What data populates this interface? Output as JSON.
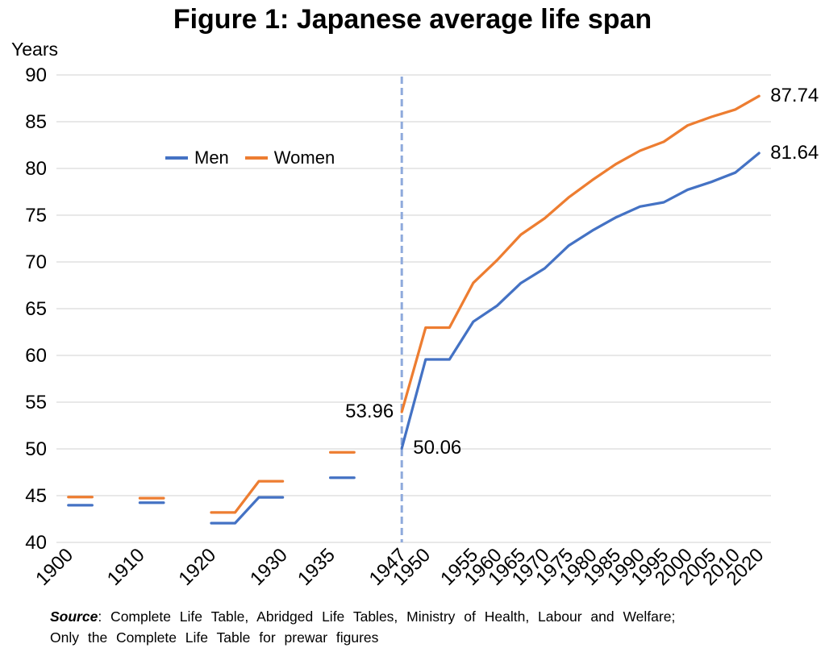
{
  "chart_data": {
    "type": "line",
    "title": "Figure 1: Japanese average life span",
    "ylabel": "Years",
    "xlabel": "",
    "ylim": [
      40,
      90
    ],
    "y_ticks": [
      40,
      45,
      50,
      55,
      60,
      65,
      70,
      75,
      80,
      85,
      90
    ],
    "grid": true,
    "grid_color": "#d9d9d9",
    "x_axis_note": "categorical axis; 30 uniform slots, life-table periods drawn as segments with gaps",
    "slot_count": 30,
    "x_ticks": [
      {
        "slot": 0,
        "label": "1900"
      },
      {
        "slot": 3,
        "label": "1910"
      },
      {
        "slot": 6,
        "label": "1920"
      },
      {
        "slot": 9,
        "label": "1930"
      },
      {
        "slot": 11,
        "label": "1935"
      },
      {
        "slot": 14,
        "label": "1947"
      },
      {
        "slot": 15,
        "label": "1950"
      },
      {
        "slot": 17,
        "label": "1955"
      },
      {
        "slot": 18,
        "label": "1960"
      },
      {
        "slot": 19,
        "label": "1965"
      },
      {
        "slot": 20,
        "label": "1970"
      },
      {
        "slot": 21,
        "label": "1975"
      },
      {
        "slot": 22,
        "label": "1980"
      },
      {
        "slot": 23,
        "label": "1985"
      },
      {
        "slot": 24,
        "label": "1990"
      },
      {
        "slot": 25,
        "label": "1995"
      },
      {
        "slot": 26,
        "label": "2000"
      },
      {
        "slot": 27,
        "label": "2005"
      },
      {
        "slot": 28,
        "label": "2010"
      },
      {
        "slot": 29,
        "label": "2020"
      }
    ],
    "divider": {
      "slot": 14,
      "label": "1947",
      "color": "#8faadc",
      "style": "dashed"
    },
    "series": [
      {
        "name": "Men",
        "color": "#4472C4",
        "points": [
          [
            0,
            43.97
          ],
          [
            1,
            43.97
          ],
          null,
          [
            3,
            44.25
          ],
          [
            4,
            44.25
          ],
          null,
          [
            6,
            42.06
          ],
          [
            7,
            42.06
          ],
          [
            8,
            44.82
          ],
          [
            9,
            44.82
          ],
          null,
          [
            11,
            46.92
          ],
          [
            12,
            46.92
          ],
          null,
          [
            14,
            50.06
          ],
          [
            15,
            59.57
          ],
          [
            16,
            59.57
          ],
          [
            17,
            63.6
          ],
          [
            18,
            65.32
          ],
          [
            19,
            67.74
          ],
          [
            20,
            69.31
          ],
          [
            21,
            71.73
          ],
          [
            22,
            73.35
          ],
          [
            23,
            74.78
          ],
          [
            24,
            75.92
          ],
          [
            25,
            76.38
          ],
          [
            26,
            77.72
          ],
          [
            27,
            78.56
          ],
          [
            28,
            79.55
          ],
          [
            29,
            81.64
          ]
        ]
      },
      {
        "name": "Women",
        "color": "#ED7D31",
        "points": [
          [
            0,
            44.85
          ],
          [
            1,
            44.85
          ],
          null,
          [
            3,
            44.73
          ],
          [
            4,
            44.73
          ],
          null,
          [
            6,
            43.2
          ],
          [
            7,
            43.2
          ],
          [
            8,
            46.54
          ],
          [
            9,
            46.54
          ],
          null,
          [
            11,
            49.63
          ],
          [
            12,
            49.63
          ],
          null,
          [
            14,
            53.96
          ],
          [
            15,
            62.97
          ],
          [
            16,
            62.97
          ],
          [
            17,
            67.75
          ],
          [
            18,
            70.19
          ],
          [
            19,
            72.92
          ],
          [
            20,
            74.66
          ],
          [
            21,
            76.89
          ],
          [
            22,
            78.76
          ],
          [
            23,
            80.48
          ],
          [
            24,
            81.9
          ],
          [
            25,
            82.85
          ],
          [
            26,
            84.6
          ],
          [
            27,
            85.52
          ],
          [
            28,
            86.3
          ],
          [
            29,
            87.74
          ]
        ]
      }
    ],
    "annotations": [
      {
        "text": "53.96",
        "series": "Women",
        "at": "1947",
        "slot": 14,
        "value": 53.96,
        "side": "left"
      },
      {
        "text": "50.06",
        "series": "Men",
        "at": "1947",
        "slot": 14,
        "value": 50.06,
        "side": "right"
      },
      {
        "text": "87.74",
        "series": "Women",
        "at": "2020",
        "slot": 29,
        "value": 87.74,
        "side": "right"
      },
      {
        "text": "81.64",
        "series": "Men",
        "at": "2020",
        "slot": 29,
        "value": 81.64,
        "side": "right"
      }
    ],
    "legend_position": "inside-top-left"
  },
  "legend": {
    "items": [
      {
        "label": "Men",
        "color": "#4472C4"
      },
      {
        "label": "Women",
        "color": "#ED7D31"
      }
    ]
  },
  "source": {
    "label": "Source",
    "line1": ": Complete Life Table, Abridged Life Tables, Ministry of Health, Labour and Welfare;",
    "line2": "Only the Complete Life Table for prewar figures"
  }
}
